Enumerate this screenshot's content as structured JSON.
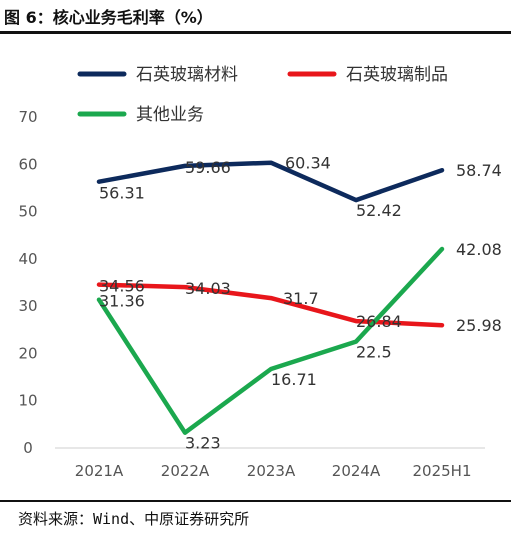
{
  "title": "图 6：核心业务毛利率（%）",
  "source": "资料来源：Wind、中原证券研究所",
  "chart_data": {
    "type": "line",
    "categories": [
      "2021A",
      "2022A",
      "2023A",
      "2024A",
      "2025H1"
    ],
    "ylim": [
      0,
      70
    ],
    "yticks": [
      0,
      10,
      20,
      30,
      40,
      50,
      60,
      70
    ],
    "grid": false,
    "legend_position": "top",
    "series": [
      {
        "name": "石英玻璃材料",
        "color": "#0d2a5c",
        "values": [
          56.31,
          59.66,
          60.34,
          52.42,
          58.74
        ]
      },
      {
        "name": "石英玻璃制品",
        "color": "#e8161b",
        "values": [
          34.56,
          34.03,
          31.7,
          26.84,
          25.98
        ]
      },
      {
        "name": "其他业务",
        "color": "#1ba84e",
        "values": [
          31.36,
          3.23,
          16.71,
          22.5,
          42.08
        ]
      }
    ]
  }
}
